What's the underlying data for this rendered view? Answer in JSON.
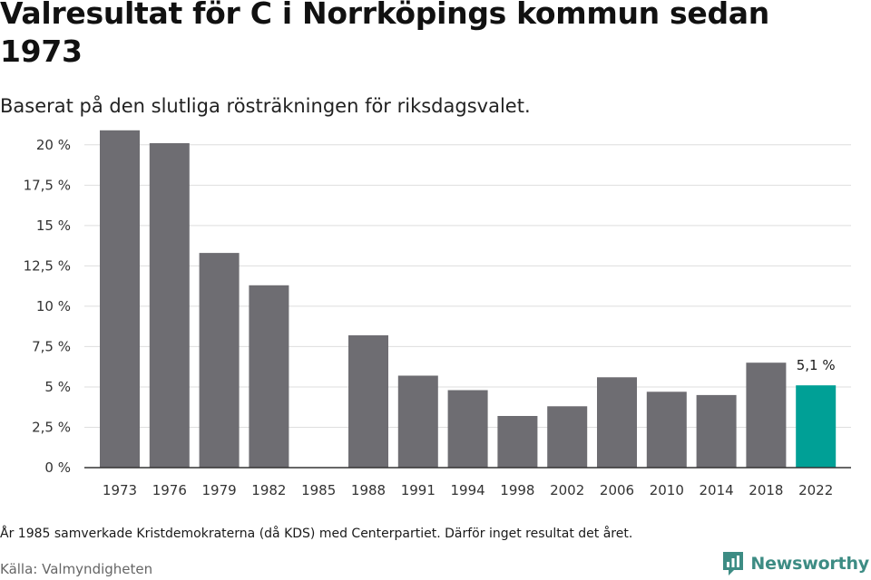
{
  "header": {
    "title": "Valresultat för C i Norrköpings kommun sedan 1973",
    "subtitle": "Baserat på den slutliga rösträkningen för riksdagsvalet."
  },
  "chart_data": {
    "type": "bar",
    "title": "Valresultat för C i Norrköpings kommun sedan 1973",
    "subtitle": "Baserat på den slutliga rösträkningen för riksdagsvalet.",
    "xlabel": "",
    "ylabel": "",
    "categories": [
      "1973",
      "1976",
      "1979",
      "1982",
      "1985",
      "1988",
      "1991",
      "1994",
      "1998",
      "2002",
      "2006",
      "2010",
      "2014",
      "2018",
      "2022"
    ],
    "values": [
      20.9,
      20.1,
      13.3,
      11.3,
      null,
      8.2,
      5.7,
      4.8,
      3.2,
      3.8,
      5.6,
      4.7,
      4.5,
      6.5,
      5.1
    ],
    "ylim": [
      0,
      21
    ],
    "yticks": [
      0,
      2.5,
      5,
      7.5,
      10,
      12.5,
      15,
      17.5,
      20
    ],
    "ytick_labels": [
      "0 %",
      "2,5 %",
      "5 %",
      "7,5 %",
      "10 %",
      "12,5 %",
      "15 %",
      "17,5 %",
      "20 %"
    ],
    "grid": true,
    "bar_color": "#6e6d72",
    "highlight_color": "#00a096",
    "highlight_category": "2022",
    "annotations": [
      {
        "category": "2022",
        "text": "5,1 %"
      }
    ]
  },
  "footer": {
    "note": "År 1985 samverkade Kristdemokraterna (då KDS) med Centerpartiet. Därför inget resultat det året.",
    "source": "Källa: Valmyndigheten",
    "logo_text": "Newsworthy",
    "logo_color": "#3d8c84"
  }
}
